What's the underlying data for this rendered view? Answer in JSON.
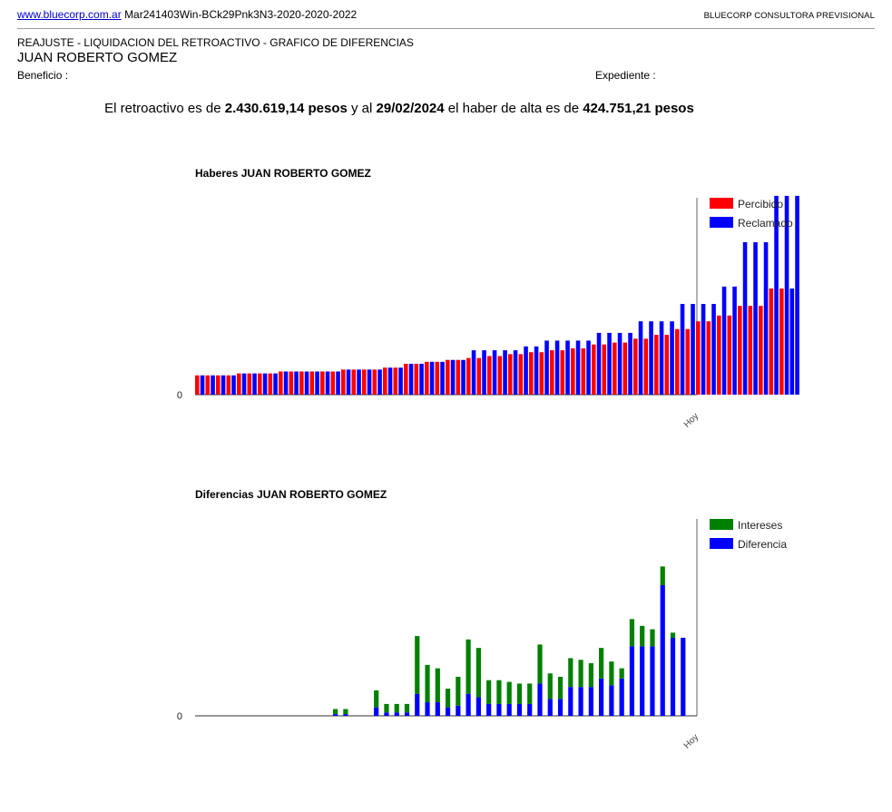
{
  "header": {
    "link_text": "www.bluecorp.com.ar",
    "code": "Mar241403Win-BCk29Pnk3N3-2020-2020-2022",
    "brand": "BLUECORP CONSULTORA PREVISIONAL"
  },
  "document": {
    "title": "REAJUSTE - LIQUIDACION DEL RETROACTIVO - GRAFICO DE DIFERENCIAS",
    "person": "JUAN ROBERTO GOMEZ",
    "beneficio_label": "Beneficio :",
    "expediente_label": "Expediente :"
  },
  "summary": {
    "t1": "El retroactivo es de ",
    "retroactivo": "2.430.619,14 pesos",
    "t2": " y al ",
    "fecha": "29/02/2024",
    "t3": " el haber de alta es de ",
    "haber": "424.751,21 pesos"
  },
  "chart_data": [
    {
      "type": "bar",
      "title": "Haberes JUAN ROBERTO GOMEZ",
      "y_tick_label": "0",
      "last_category_label": "Hoy",
      "ylim": [
        0,
        102
      ],
      "legend_position": "right",
      "series": [
        {
          "name": "Percibido",
          "color": "#ff0000",
          "values": [
            10,
            10,
            10,
            10,
            11,
            11,
            11,
            11,
            12,
            12,
            12,
            12,
            12,
            12,
            13,
            13,
            13,
            13,
            14,
            14,
            16,
            16,
            17,
            17,
            18,
            18,
            19,
            19,
            20,
            20,
            21,
            21,
            22,
            22,
            23,
            23,
            24,
            24,
            26,
            26,
            27,
            27,
            29,
            29,
            31,
            31,
            34,
            34,
            38,
            38,
            41,
            41,
            46,
            46,
            46,
            55,
            55,
            55
          ],
          "colors_by_index": {
            "55": "#ff0000",
            "56": "#ff0000",
            "57": "#0000ff"
          }
        },
        {
          "name": "Reclamado",
          "color": "#0000ff",
          "values": [
            10,
            10,
            10,
            10,
            11,
            11,
            11,
            11,
            12,
            12,
            12,
            12,
            12,
            12,
            13,
            13,
            13,
            13,
            14,
            14,
            16,
            16,
            17,
            17,
            18,
            18,
            23,
            23,
            23,
            23,
            23,
            25,
            25,
            28,
            28,
            28,
            28,
            28,
            32,
            32,
            32,
            32,
            38,
            38,
            38,
            38,
            47,
            47,
            47,
            47,
            56,
            56,
            79,
            79,
            79,
            103,
            103,
            103
          ]
        }
      ]
    },
    {
      "type": "bar",
      "title": "Diferencias JUAN ROBERTO GOMEZ",
      "y_tick_label": "0",
      "last_category_label": "Hoy",
      "ylim": [
        0,
        116
      ],
      "stacked": true,
      "legend_position": "right",
      "series": [
        {
          "name": "Diferencia",
          "color": "#0000ff",
          "values": [
            0,
            0,
            0,
            0,
            0,
            0,
            0,
            0,
            0,
            0,
            0,
            0,
            0,
            0,
            1,
            1,
            0,
            0,
            5,
            2,
            2,
            2,
            13,
            8,
            8,
            5,
            6,
            13,
            11,
            7,
            7,
            7,
            7,
            7,
            19,
            10,
            10,
            17,
            17,
            17,
            22,
            18,
            22,
            41,
            41,
            41,
            77,
            46,
            46
          ]
        },
        {
          "name": "Intereses",
          "color": "#008000",
          "values": [
            0,
            0,
            0,
            0,
            0,
            0,
            0,
            0,
            0,
            0,
            0,
            0,
            0,
            0,
            3,
            3,
            0,
            0,
            10,
            5,
            5,
            5,
            34,
            22,
            20,
            11,
            17,
            32,
            29,
            14,
            14,
            13,
            12,
            12,
            23,
            15,
            13,
            17,
            16,
            14,
            18,
            14,
            6,
            16,
            12,
            10,
            11,
            3,
            0
          ]
        }
      ]
    }
  ]
}
